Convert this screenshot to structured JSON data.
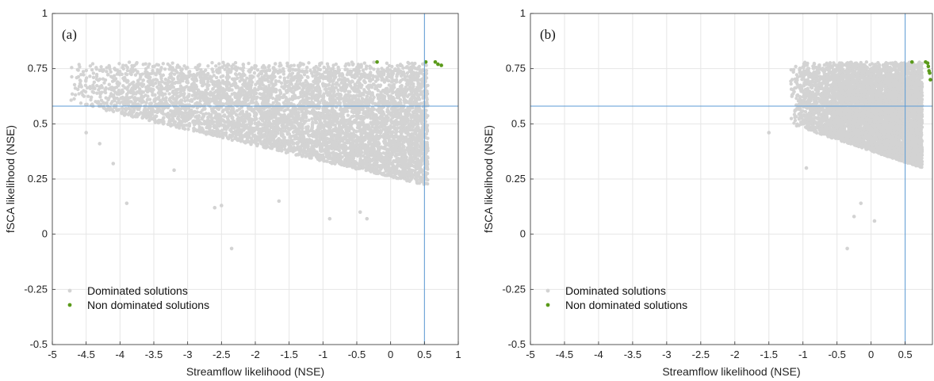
{
  "chart_data": [
    {
      "type": "scatter",
      "panel_label": "(a)",
      "xlabel": "Streamflow likelihood (NSE)",
      "ylabel": "fSCA likelihood (NSE)",
      "xlim": [
        -5,
        1
      ],
      "ylim": [
        -0.5,
        1
      ],
      "xticks": [
        "-5",
        "-4.5",
        "-4",
        "-3.5",
        "-3",
        "-2.5",
        "-2",
        "-1.5",
        "-1",
        "-0.5",
        "0",
        "0.5",
        "1"
      ],
      "yticks": [
        "-0.5",
        "-0.25",
        "0",
        "0.25",
        "0.5",
        "0.75",
        "1"
      ],
      "grid": true,
      "reference_lines": {
        "x": 0.5,
        "y": 0.58
      },
      "legend_position": "bottom-left",
      "series": [
        {
          "name": "Dominated solutions",
          "color": "#d3d3d3",
          "cloud": {
            "x_min": -4.8,
            "x_max": 0.55,
            "upper_edge": 0.78,
            "lower_edge_at_x_max": 0.22,
            "lower_edge_at_x_min": 0.6
          },
          "points": [
            {
              "x": -4.6,
              "y": 0.67
            },
            {
              "x": -4.5,
              "y": 0.46
            },
            {
              "x": -4.3,
              "y": 0.41
            },
            {
              "x": -4.1,
              "y": 0.32
            },
            {
              "x": -4.4,
              "y": 0.58
            },
            {
              "x": -3.9,
              "y": 0.14
            },
            {
              "x": -3.85,
              "y": 0.6
            },
            {
              "x": -3.2,
              "y": 0.29
            },
            {
              "x": -2.6,
              "y": 0.12
            },
            {
              "x": -2.5,
              "y": 0.13
            },
            {
              "x": -2.35,
              "y": -0.065
            },
            {
              "x": -1.65,
              "y": 0.15
            },
            {
              "x": -0.9,
              "y": 0.07
            },
            {
              "x": -0.35,
              "y": 0.07
            },
            {
              "x": -0.45,
              "y": 0.1
            }
          ]
        },
        {
          "name": "Non dominated solutions",
          "color": "#5a9a1a",
          "points": [
            {
              "x": -0.2,
              "y": 0.78
            },
            {
              "x": 0.52,
              "y": 0.78
            },
            {
              "x": 0.66,
              "y": 0.78
            },
            {
              "x": 0.7,
              "y": 0.77
            },
            {
              "x": 0.75,
              "y": 0.765
            }
          ]
        }
      ]
    },
    {
      "type": "scatter",
      "panel_label": "(b)",
      "xlabel": "Streamflow likelihood (NSE)",
      "ylabel": "fSCA likelihood (NSE)",
      "xlim": [
        -5,
        0.9
      ],
      "ylim": [
        -0.5,
        1
      ],
      "xticks": [
        "-5",
        "-4.5",
        "-4",
        "-3.5",
        "-3",
        "-2.5",
        "-2",
        "-1.5",
        "-1",
        "-0.5",
        "0",
        "0.5"
      ],
      "yticks": [
        "-0.5",
        "-0.25",
        "0",
        "0.25",
        "0.5",
        "0.75",
        "1"
      ],
      "grid": true,
      "reference_lines": {
        "x": 0.5,
        "y": 0.58
      },
      "legend_position": "bottom-left",
      "series": [
        {
          "name": "Dominated solutions",
          "color": "#d3d3d3",
          "cloud": {
            "x_min": -1.2,
            "x_max": 0.75,
            "upper_edge": 0.78,
            "lower_edge_at_x_max": 0.3,
            "lower_edge_at_x_min": 0.5
          },
          "points": [
            {
              "x": -1.5,
              "y": 0.46
            },
            {
              "x": -0.35,
              "y": -0.065
            },
            {
              "x": -0.25,
              "y": 0.08
            },
            {
              "x": 0.05,
              "y": 0.06
            },
            {
              "x": -0.15,
              "y": 0.14
            },
            {
              "x": -0.95,
              "y": 0.3
            }
          ]
        },
        {
          "name": "Non dominated solutions",
          "color": "#5a9a1a",
          "points": [
            {
              "x": 0.6,
              "y": 0.78
            },
            {
              "x": 0.8,
              "y": 0.78
            },
            {
              "x": 0.83,
              "y": 0.775
            },
            {
              "x": 0.84,
              "y": 0.76
            },
            {
              "x": 0.85,
              "y": 0.74
            },
            {
              "x": 0.86,
              "y": 0.73
            },
            {
              "x": 0.87,
              "y": 0.7
            }
          ]
        }
      ]
    }
  ]
}
